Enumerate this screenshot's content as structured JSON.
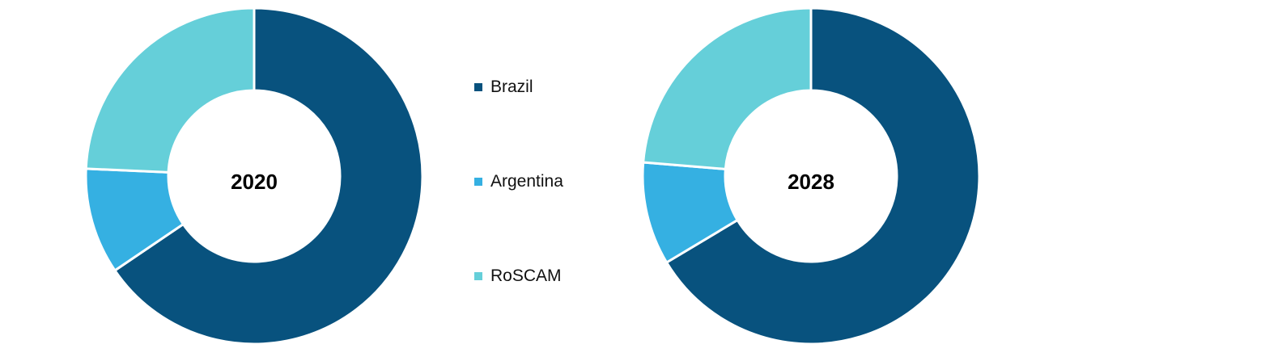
{
  "chart_data": [
    {
      "type": "pie",
      "center_label": "2020",
      "categories": [
        "Brazil",
        "Argentina",
        "RoSCAM"
      ],
      "values": [
        65.5,
        10.2,
        24.3
      ],
      "colors": [
        "#08527e",
        "#35b0e2",
        "#65cfd9"
      ]
    },
    {
      "type": "pie",
      "center_label": "2028",
      "categories": [
        "Brazil",
        "Argentina",
        "RoSCAM"
      ],
      "values": [
        66.4,
        9.9,
        23.7
      ],
      "colors": [
        "#08527e",
        "#35b0e2",
        "#65cfd9"
      ]
    }
  ],
  "legend": {
    "position": "center",
    "items": [
      {
        "label": "Brazil",
        "color": "#08527e"
      },
      {
        "label": "Argentina",
        "color": "#35b0e2"
      },
      {
        "label": "RoSCAM",
        "color": "#65cfd9"
      }
    ]
  }
}
